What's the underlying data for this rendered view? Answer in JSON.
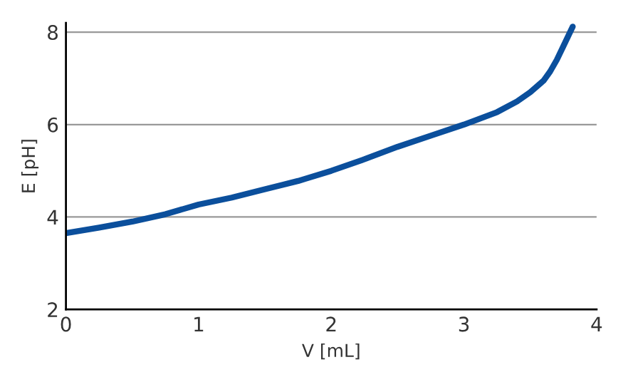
{
  "chart_data": {
    "type": "line",
    "xlabel": "V [mL]",
    "ylabel": "E [pH]",
    "x": [
      0,
      0.25,
      0.5,
      0.75,
      1,
      1.25,
      1.5,
      1.75,
      2,
      2.25,
      2.5,
      2.75,
      3,
      3.25,
      3.4,
      3.5,
      3.6,
      3.65,
      3.7,
      3.75,
      3.8,
      3.82
    ],
    "series": [
      {
        "color": "#0b4f9c",
        "values": [
          3.65,
          3.77,
          3.9,
          4.06,
          4.27,
          4.42,
          4.6,
          4.78,
          5.0,
          5.25,
          5.52,
          5.76,
          6.0,
          6.27,
          6.5,
          6.7,
          6.95,
          7.15,
          7.4,
          7.7,
          8.0,
          8.12
        ]
      }
    ],
    "xlim": [
      0,
      4
    ],
    "ylim": [
      2,
      8.2
    ],
    "xticks": [
      0,
      1,
      2,
      3,
      4
    ],
    "yticks": [
      2,
      4,
      6,
      8
    ],
    "grid": "y",
    "marker": "none",
    "line_style": "solid"
  }
}
